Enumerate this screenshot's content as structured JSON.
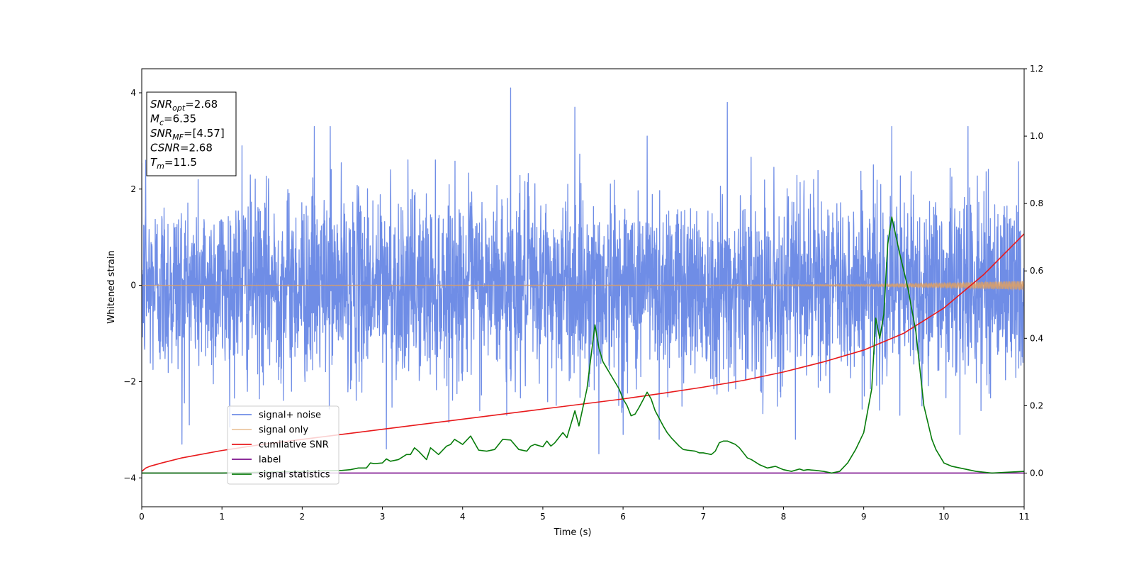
{
  "chart_data": {
    "type": "line",
    "xlabel": "Time (s)",
    "ylabel": "Whitened strain",
    "xlim": [
      0,
      11
    ],
    "ylim": [
      -4.6,
      4.5
    ],
    "y2lim": [
      -0.1,
      1.2
    ],
    "x_ticks": [
      0,
      1,
      2,
      3,
      4,
      5,
      6,
      7,
      8,
      9,
      10,
      11
    ],
    "y_ticks": [
      -4,
      -2,
      0,
      2,
      4
    ],
    "y2_ticks": [
      "0.0",
      "0.2",
      "0.4",
      "0.6",
      "0.8",
      "1.0",
      "1.2"
    ],
    "grid": false,
    "legend_position": "lower-left",
    "annotation": {
      "lines": [
        {
          "base": "SNR",
          "sub": "opt",
          "value": "=2.68"
        },
        {
          "base": "M",
          "sub": "c",
          "value": "=6.35"
        },
        {
          "base": "SNR",
          "sub": "MF",
          "value": "=[4.57]"
        },
        {
          "base": "CSNR",
          "sub": "",
          "value": "=2.68"
        },
        {
          "base": "T",
          "sub": "m",
          "value": "=11.5"
        }
      ]
    },
    "series": [
      {
        "name": "signal+ noise",
        "color": "#6f8de6",
        "axis": "left",
        "kind": "noise",
        "sigma": 1.0,
        "duration": 11,
        "peaks": [
          [
            0.05,
            2.6
          ],
          [
            0.5,
            -3.3
          ],
          [
            1.25,
            2.9
          ],
          [
            2.15,
            3.3
          ],
          [
            2.35,
            3.3
          ],
          [
            3.05,
            -3.4
          ],
          [
            3.1,
            2.4
          ],
          [
            4.6,
            4.1
          ],
          [
            4.55,
            -2.7
          ],
          [
            5.4,
            3.7
          ],
          [
            5.7,
            -3.5
          ],
          [
            6.0,
            -3.1
          ],
          [
            6.3,
            3.1
          ],
          [
            6.45,
            -3.2
          ],
          [
            7.3,
            3.8
          ],
          [
            8.15,
            -3.2
          ],
          [
            9.35,
            3.3
          ],
          [
            9.45,
            -2.7
          ],
          [
            10.3,
            3.3
          ],
          [
            10.2,
            -3.1
          ]
        ]
      },
      {
        "name": "signal only",
        "color": "#e0a060",
        "axis": "left",
        "kind": "chirp",
        "envelope": [
          [
            0,
            0.004
          ],
          [
            7,
            0.008
          ],
          [
            9,
            0.02
          ],
          [
            10,
            0.045
          ],
          [
            11,
            0.09
          ]
        ]
      },
      {
        "name": "cumilative SNR",
        "color": "#e8191b",
        "axis": "right",
        "x": [
          0,
          0.05,
          0.1,
          0.25,
          0.5,
          1,
          1.5,
          2,
          2.5,
          3,
          3.5,
          4,
          4.5,
          5,
          5.5,
          6,
          6.5,
          7,
          7.5,
          8,
          8.5,
          9,
          9.5,
          10,
          10.5,
          11
        ],
        "y": [
          0.005,
          0.015,
          0.02,
          0.03,
          0.045,
          0.067,
          0.085,
          0.1,
          0.115,
          0.13,
          0.145,
          0.16,
          0.175,
          0.19,
          0.205,
          0.22,
          0.237,
          0.255,
          0.275,
          0.3,
          0.33,
          0.365,
          0.415,
          0.49,
          0.59,
          0.71
        ]
      },
      {
        "name": "label",
        "color": "#7b0f8c",
        "axis": "right",
        "x": [
          0,
          11
        ],
        "y": [
          0.0,
          0.0
        ]
      },
      {
        "name": "signal statistics",
        "color": "#077c0a",
        "axis": "right",
        "x": [
          0,
          1,
          2,
          2.5,
          2.6,
          2.7,
          2.8,
          2.85,
          2.9,
          3.0,
          3.05,
          3.1,
          3.2,
          3.3,
          3.35,
          3.4,
          3.45,
          3.55,
          3.6,
          3.65,
          3.7,
          3.8,
          3.85,
          3.9,
          4.0,
          4.1,
          4.2,
          4.3,
          4.4,
          4.5,
          4.6,
          4.7,
          4.8,
          4.85,
          4.9,
          5.0,
          5.05,
          5.1,
          5.15,
          5.25,
          5.3,
          5.4,
          5.45,
          5.55,
          5.65,
          5.7,
          5.75,
          5.8,
          5.85,
          5.95,
          6.0,
          6.05,
          6.1,
          6.15,
          6.2,
          6.3,
          6.35,
          6.4,
          6.5,
          6.55,
          6.6,
          6.7,
          6.75,
          6.8,
          6.9,
          6.95,
          7.0,
          7.1,
          7.15,
          7.2,
          7.25,
          7.3,
          7.4,
          7.45,
          7.5,
          7.55,
          7.6,
          7.7,
          7.8,
          7.9,
          8.0,
          8.1,
          8.2,
          8.25,
          8.3,
          8.4,
          8.5,
          8.6,
          8.7,
          8.8,
          8.9,
          9.0,
          9.1,
          9.15,
          9.2,
          9.25,
          9.3,
          9.35,
          9.45,
          9.55,
          9.65,
          9.75,
          9.85,
          9.9,
          10.0,
          10.1,
          10.2,
          10.3,
          10.4,
          10.6,
          11
        ],
        "y": [
          0.0,
          0.0,
          0.005,
          0.008,
          0.01,
          0.015,
          0.015,
          0.03,
          0.028,
          0.03,
          0.042,
          0.035,
          0.04,
          0.055,
          0.055,
          0.075,
          0.065,
          0.04,
          0.075,
          0.065,
          0.055,
          0.08,
          0.085,
          0.1,
          0.085,
          0.11,
          0.068,
          0.065,
          0.07,
          0.1,
          0.098,
          0.07,
          0.065,
          0.08,
          0.085,
          0.078,
          0.095,
          0.08,
          0.09,
          0.12,
          0.105,
          0.185,
          0.14,
          0.25,
          0.44,
          0.37,
          0.33,
          0.31,
          0.29,
          0.25,
          0.22,
          0.2,
          0.17,
          0.175,
          0.195,
          0.24,
          0.22,
          0.185,
          0.14,
          0.12,
          0.105,
          0.08,
          0.07,
          0.068,
          0.065,
          0.06,
          0.06,
          0.055,
          0.065,
          0.09,
          0.095,
          0.095,
          0.085,
          0.075,
          0.06,
          0.045,
          0.04,
          0.025,
          0.015,
          0.02,
          0.01,
          0.005,
          0.012,
          0.008,
          0.01,
          0.008,
          0.005,
          0.0,
          0.005,
          0.03,
          0.07,
          0.12,
          0.25,
          0.46,
          0.4,
          0.47,
          0.68,
          0.76,
          0.65,
          0.55,
          0.42,
          0.2,
          0.1,
          0.07,
          0.03,
          0.02,
          0.015,
          0.01,
          0.005,
          0.0,
          0.005
        ]
      }
    ]
  }
}
